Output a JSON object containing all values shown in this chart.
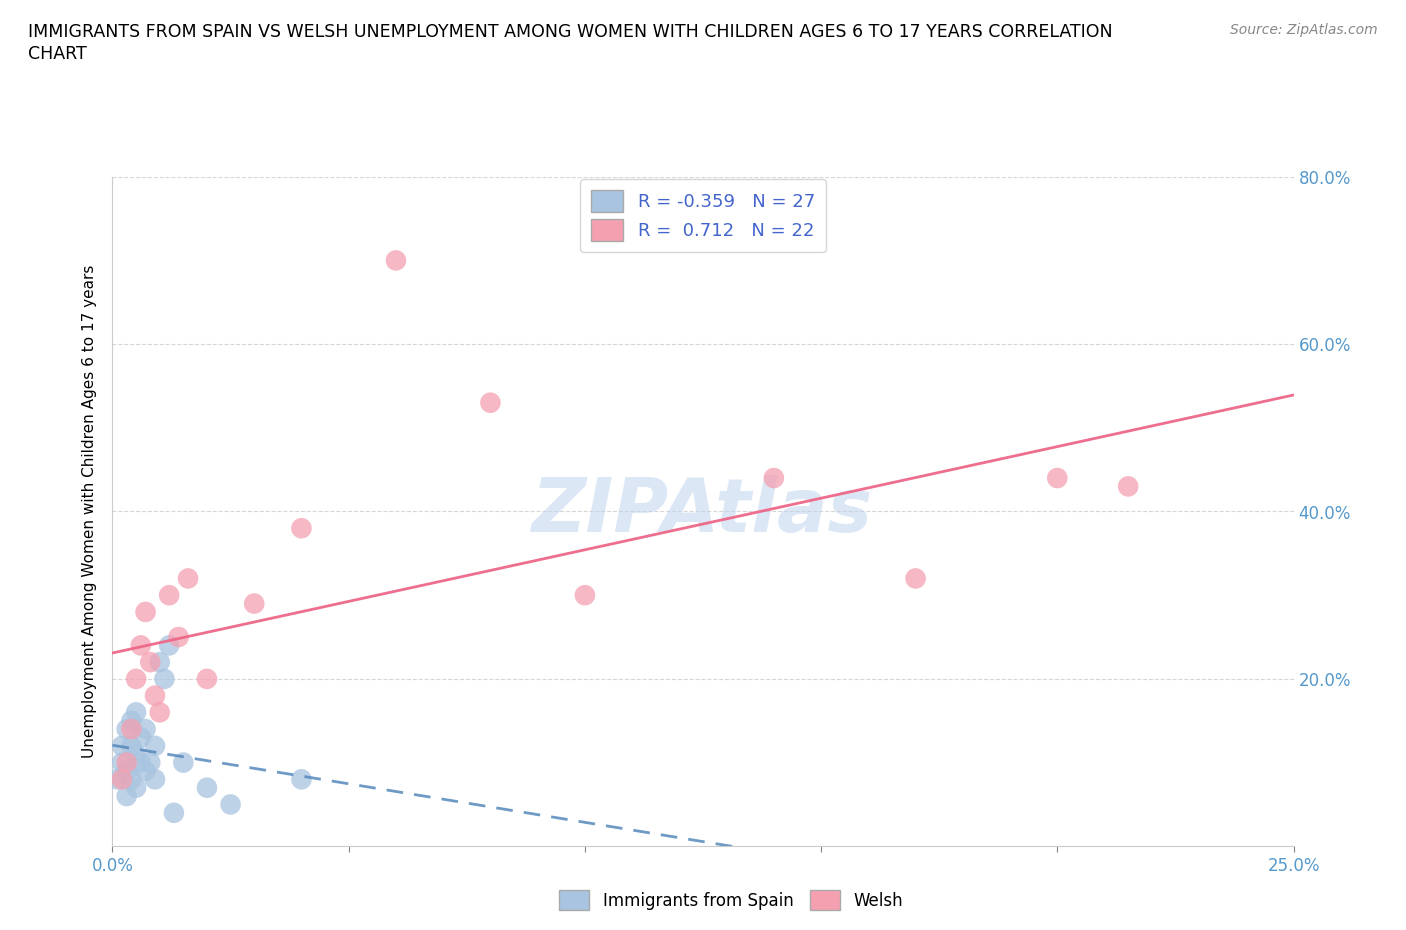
{
  "title_line1": "IMMIGRANTS FROM SPAIN VS WELSH UNEMPLOYMENT AMONG WOMEN WITH CHILDREN AGES 6 TO 17 YEARS CORRELATION",
  "title_line2": "CHART",
  "source": "Source: ZipAtlas.com",
  "ylabel": "Unemployment Among Women with Children Ages 6 to 17 years",
  "legend_label1": "Immigrants from Spain",
  "legend_label2": "Welsh",
  "R1": -0.359,
  "N1": 27,
  "R2": 0.712,
  "N2": 22,
  "xlim": [
    0.0,
    0.25
  ],
  "ylim": [
    0.0,
    0.8
  ],
  "xticks": [
    0.0,
    0.05,
    0.1,
    0.15,
    0.2,
    0.25
  ],
  "xtick_labels": [
    "0.0%",
    "",
    "",
    "",
    "",
    "25.0%"
  ],
  "yticks": [
    0.0,
    0.2,
    0.4,
    0.6,
    0.8
  ],
  "ytick_labels": [
    "",
    "20.0%",
    "40.0%",
    "60.0%",
    "80.0%"
  ],
  "color_blue": "#a8c4e0",
  "color_pink": "#f4a0b0",
  "line_color_blue": "#5588bb",
  "line_color_pink": "#ee6688",
  "watermark": "ZIPAtlas",
  "blue_scatter_x": [
    0.001,
    0.002,
    0.002,
    0.003,
    0.003,
    0.003,
    0.004,
    0.004,
    0.004,
    0.005,
    0.005,
    0.005,
    0.006,
    0.006,
    0.007,
    0.007,
    0.008,
    0.009,
    0.009,
    0.01,
    0.011,
    0.012,
    0.013,
    0.015,
    0.02,
    0.025,
    0.04
  ],
  "blue_scatter_y": [
    0.08,
    0.1,
    0.12,
    0.06,
    0.09,
    0.14,
    0.08,
    0.12,
    0.15,
    0.07,
    0.11,
    0.16,
    0.1,
    0.13,
    0.09,
    0.14,
    0.1,
    0.08,
    0.12,
    0.22,
    0.2,
    0.24,
    0.04,
    0.1,
    0.07,
    0.05,
    0.08
  ],
  "pink_scatter_x": [
    0.002,
    0.003,
    0.004,
    0.005,
    0.006,
    0.007,
    0.008,
    0.009,
    0.01,
    0.012,
    0.014,
    0.016,
    0.02,
    0.03,
    0.04,
    0.06,
    0.08,
    0.1,
    0.14,
    0.17,
    0.2,
    0.215
  ],
  "pink_scatter_y": [
    0.08,
    0.1,
    0.14,
    0.2,
    0.24,
    0.28,
    0.22,
    0.18,
    0.16,
    0.3,
    0.25,
    0.32,
    0.2,
    0.29,
    0.38,
    0.7,
    0.53,
    0.3,
    0.44,
    0.32,
    0.44,
    0.43
  ]
}
